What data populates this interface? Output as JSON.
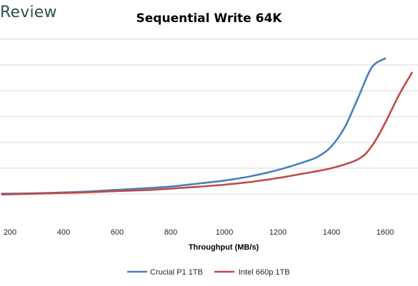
{
  "header": {
    "brand": "Review"
  },
  "chart_data": {
    "type": "line",
    "title": "Sequential Write 64K",
    "xlabel": "Throughput (MB/s)",
    "ylabel": "",
    "xlim": [
      170,
      1715
    ],
    "ylim": [
      0,
      5.5
    ],
    "x_ticks": [
      200,
      400,
      600,
      800,
      1000,
      1200,
      1400,
      1600
    ],
    "y_gridlines": [
      0,
      1,
      2,
      3,
      4,
      5,
      6
    ],
    "y_tick_labels_visible": false,
    "grid": true,
    "legend_position": "bottom",
    "colors": {
      "Crucial P1 1TB": "#4a7ebb",
      "Intel 660p 1TB": "#be4b48"
    },
    "series": [
      {
        "name": "Crucial P1 1TB",
        "x": [
          170,
          300,
          400,
          500,
          600,
          700,
          800,
          900,
          1000,
          1100,
          1200,
          1300,
          1350,
          1400,
          1450,
          1500,
          1550,
          1600
        ],
        "y": [
          0.01,
          0.03,
          0.06,
          0.1,
          0.16,
          0.22,
          0.29,
          0.4,
          0.52,
          0.69,
          0.93,
          1.25,
          1.45,
          1.85,
          2.6,
          3.75,
          4.9,
          5.25
        ]
      },
      {
        "name": "Intel 660p 1TB",
        "x": [
          170,
          300,
          400,
          500,
          600,
          700,
          800,
          900,
          1000,
          1100,
          1200,
          1300,
          1400,
          1500,
          1550,
          1600,
          1650,
          1700
        ],
        "y": [
          -0.02,
          0.01,
          0.04,
          0.07,
          0.11,
          0.15,
          0.21,
          0.28,
          0.36,
          0.47,
          0.62,
          0.8,
          1.0,
          1.35,
          1.85,
          2.75,
          3.8,
          4.7
        ]
      }
    ]
  }
}
